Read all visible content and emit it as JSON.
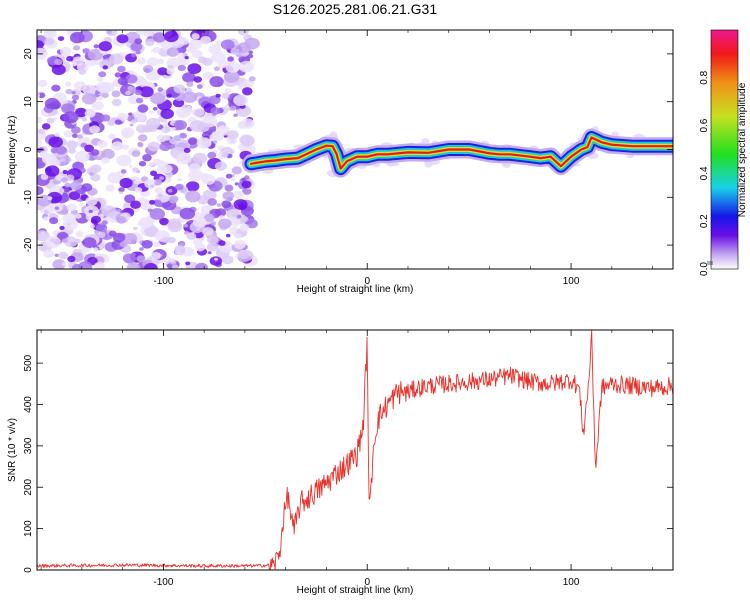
{
  "title": "S126.2025.281.06.21.G31",
  "colors": {
    "line": "#e8312a",
    "noise": "#7a1ee8",
    "band_outer": "#1a22e0",
    "band_mid": "#18c8d8",
    "band_core": "#d8e020",
    "band_center": "#e81818"
  },
  "chart_data": [
    {
      "type": "heatmap",
      "name": "spectrogram",
      "xlabel": "Height of straight line (km)",
      "ylabel": "Frequency (Hz)",
      "xlim": [
        -162,
        150
      ],
      "ylim": [
        -25,
        25
      ],
      "xticks": [
        -100,
        0,
        100
      ],
      "yticks": [
        -20,
        -10,
        0,
        10,
        20
      ],
      "noise_region_x": [
        -162,
        -58
      ],
      "ridge": {
        "x": [
          -57,
          -50,
          -45,
          -40,
          -34,
          -30,
          -25,
          -20,
          -17,
          -15,
          -13,
          -10,
          -5,
          0,
          5,
          10,
          20,
          30,
          40,
          50,
          60,
          65,
          70,
          80,
          85,
          90,
          95,
          100,
          105,
          108,
          110,
          115,
          120,
          130,
          140,
          150
        ],
        "y": [
          -3,
          -2.5,
          -2.3,
          -2,
          -1.8,
          -1,
          0,
          0.8,
          0.7,
          -1,
          -4,
          -2.5,
          -1.5,
          -1.5,
          -1,
          -1,
          -0.6,
          -0.7,
          0,
          0,
          -0.8,
          -1,
          -1,
          -1.5,
          -1.8,
          -1.5,
          -3.5,
          -1.5,
          0,
          0.5,
          2.5,
          1.5,
          1,
          0.7,
          0.7,
          0.7
        ]
      },
      "colorbar": {
        "label": "Normalized spectral amplitude",
        "range": [
          0,
          1
        ],
        "ticks": [
          "0.0",
          "0.2",
          "0.4",
          "0.6",
          "0.8"
        ]
      }
    },
    {
      "type": "line",
      "name": "snr",
      "xlabel": "Height of straight line (km)",
      "ylabel": "SNR (10 * v/v)",
      "xlim": [
        -162,
        150
      ],
      "ylim": [
        0,
        580
      ],
      "xticks": [
        -100,
        0,
        100
      ],
      "yticks": [
        0,
        100,
        200,
        300,
        400,
        500
      ],
      "series": [
        {
          "name": "SNR",
          "x": [
            -162,
            -120,
            -80,
            -56,
            -46,
            -43,
            -41,
            -39,
            -36,
            -33,
            -30,
            -25,
            -20,
            -15,
            -10,
            -5,
            -2,
            0,
            1,
            3,
            5,
            7,
            10,
            15,
            20,
            25,
            30,
            40,
            50,
            60,
            70,
            80,
            90,
            100,
            104,
            106,
            109,
            110,
            112,
            115,
            120,
            130,
            140,
            150
          ],
          "y": [
            10,
            12,
            10,
            10,
            12,
            40,
            130,
            180,
            90,
            160,
            170,
            190,
            210,
            235,
            255,
            280,
            350,
            555,
            120,
            300,
            360,
            380,
            400,
            430,
            430,
            440,
            445,
            450,
            455,
            460,
            470,
            455,
            450,
            460,
            440,
            330,
            470,
            580,
            240,
            440,
            450,
            445,
            440,
            445
          ]
        }
      ]
    }
  ],
  "colorbar_ticks": {
    "t0": "0.0",
    "t1": "0.2",
    "t2": "0.4",
    "t3": "0.6",
    "t4": "0.8"
  }
}
